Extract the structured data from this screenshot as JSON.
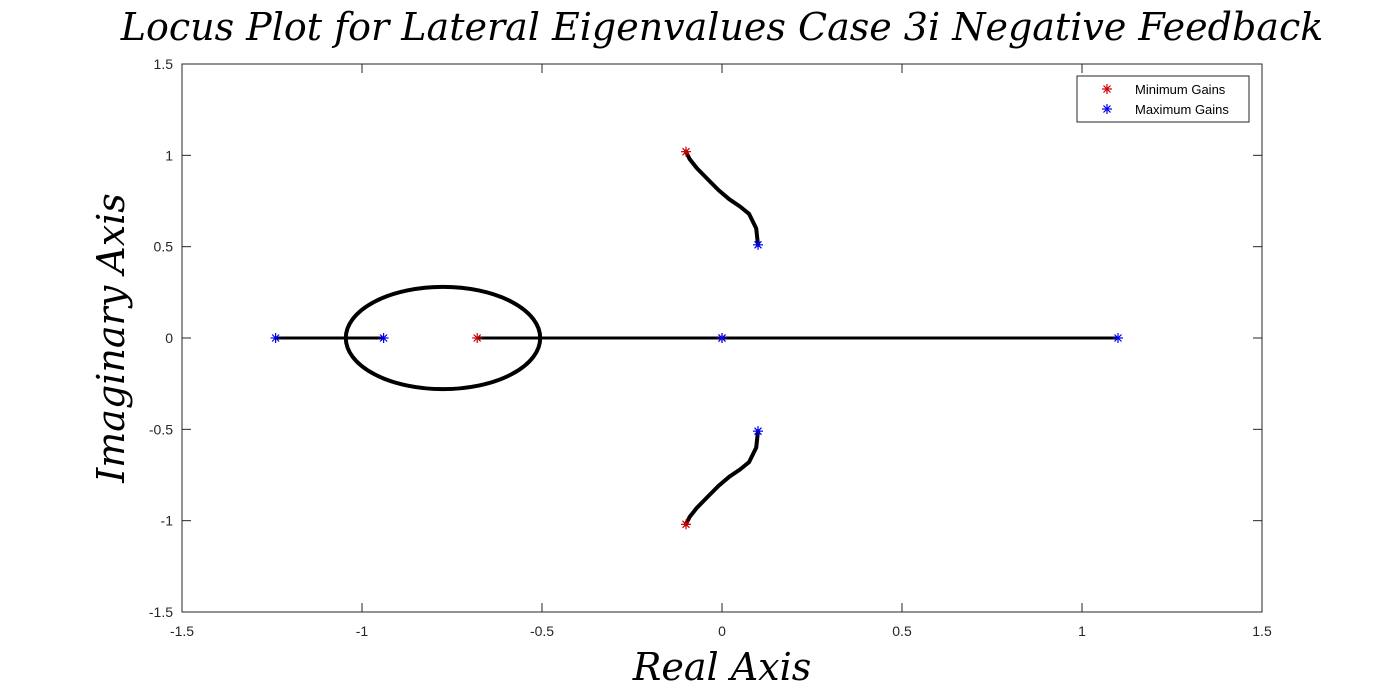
{
  "chart_data": {
    "type": "scatter",
    "title": "Locus Plot for Lateral Eigenvalues Case 3i Negative Feedback",
    "xlabel": "Real Axis",
    "ylabel": "Imaginary Axis",
    "xlim": [
      -1.5,
      1.5
    ],
    "ylim": [
      -1.5,
      1.5
    ],
    "xticks": [
      -1.5,
      -1,
      -0.5,
      0,
      0.5,
      1,
      1.5
    ],
    "xtick_labels": [
      "-1.5",
      "-1",
      "-0.5",
      "0",
      "0.5",
      "1",
      "1.5"
    ],
    "yticks": [
      -1.5,
      -1,
      -0.5,
      0,
      0.5,
      1,
      1.5
    ],
    "ytick_labels": [
      "-1.5",
      "-1",
      "-0.5",
      "0",
      "0.5",
      "1",
      "1.5"
    ],
    "grid": false,
    "legend_position": "top-right",
    "locus": {
      "color": "#000000",
      "real_axis_segments": [
        [
          -1.24,
          -1.04
        ],
        [
          -1.04,
          -0.94
        ],
        [
          -0.68,
          -0.51
        ],
        [
          -0.51,
          1.1
        ]
      ],
      "breakaway_loop": {
        "center": [
          -0.775,
          0
        ],
        "real_radius": 0.27,
        "imag_radius": 0.28
      },
      "complex_branch_upper": [
        [
          -0.1,
          1.02
        ],
        [
          -0.09,
          0.98
        ],
        [
          -0.07,
          0.93
        ],
        [
          -0.04,
          0.87
        ],
        [
          -0.01,
          0.81
        ],
        [
          0.02,
          0.76
        ],
        [
          0.05,
          0.72
        ],
        [
          0.075,
          0.68
        ],
        [
          0.095,
          0.6
        ],
        [
          0.1,
          0.51
        ]
      ],
      "complex_branch_lower": [
        [
          -0.1,
          -1.02
        ],
        [
          -0.09,
          -0.98
        ],
        [
          -0.07,
          -0.93
        ],
        [
          -0.04,
          -0.87
        ],
        [
          -0.01,
          -0.81
        ],
        [
          0.02,
          -0.76
        ],
        [
          0.05,
          -0.72
        ],
        [
          0.075,
          -0.68
        ],
        [
          0.095,
          -0.6
        ],
        [
          0.1,
          -0.51
        ]
      ]
    },
    "series": [
      {
        "name": "Minimum Gains",
        "color": "#cc0000",
        "marker": "asterisk",
        "points": [
          [
            -0.1,
            1.02
          ],
          [
            -0.1,
            -1.02
          ],
          [
            -0.68,
            0
          ],
          [
            0,
            0
          ]
        ]
      },
      {
        "name": "Maximum Gains",
        "color": "#0000ee",
        "marker": "asterisk",
        "points": [
          [
            0.1,
            0.51
          ],
          [
            0.1,
            -0.51
          ],
          [
            -1.24,
            0
          ],
          [
            -0.94,
            0
          ],
          [
            0,
            0
          ],
          [
            1.1,
            0
          ]
        ]
      }
    ]
  }
}
